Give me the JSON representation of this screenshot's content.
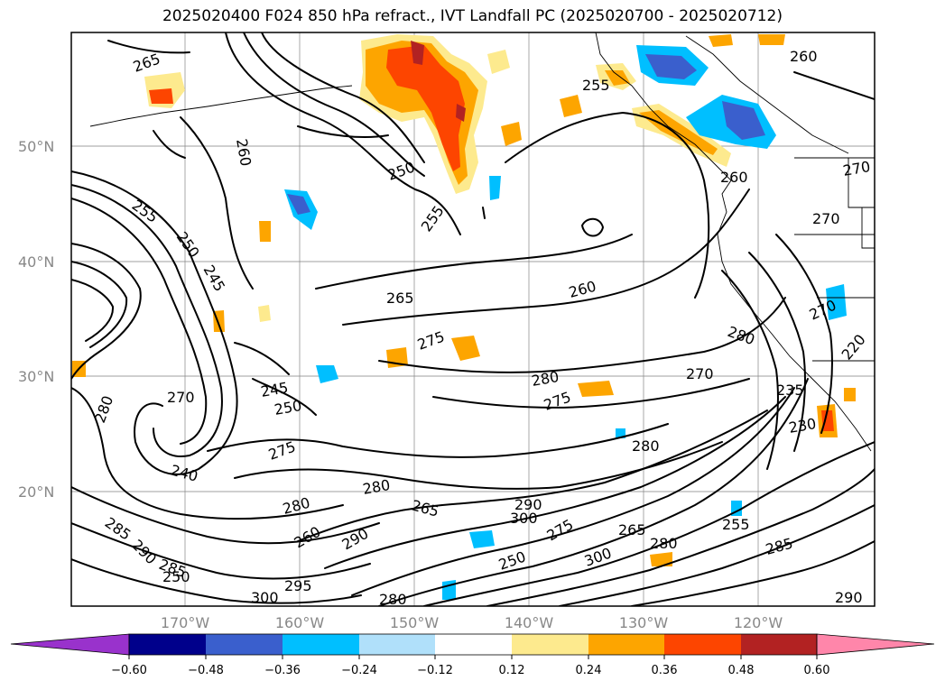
{
  "title": "2025020400 F024 850 hPa refract., IVT Landfall PC (2025020700 - 2025020712)",
  "map": {
    "lat_labels": [
      "50°N",
      "40°N",
      "30°N",
      "20°N"
    ],
    "lon_labels": [
      "170°W",
      "160°W",
      "150°W",
      "140°W",
      "130°W",
      "120°W"
    ],
    "contour_labels": [
      "265",
      "260",
      "255",
      "250",
      "255",
      "260",
      "270",
      "260",
      "255",
      "250",
      "245",
      "265",
      "260",
      "270",
      "280",
      "275",
      "280",
      "275",
      "270",
      "235",
      "230",
      "270",
      "245",
      "250",
      "240",
      "275",
      "280",
      "280",
      "265",
      "280",
      "290",
      "300",
      "285",
      "290",
      "285",
      "260",
      "290",
      "255",
      "250",
      "275",
      "265",
      "280",
      "300",
      "295",
      "290",
      "220",
      "270",
      "250",
      "285",
      "280",
      "280",
      "300"
    ],
    "colors": {
      "positive": [
        "#fdea8e",
        "#fda500",
        "#fd4500",
        "#b22222"
      ],
      "negative": [
        "#b0e0fa",
        "#00bfff",
        "#3a5fcd",
        "#00008b"
      ],
      "coast": "#000000",
      "contour": "#000000",
      "grid": "#888888"
    }
  },
  "colorbar": {
    "ticks": [
      "−0.60",
      "−0.48",
      "−0.36",
      "−0.24",
      "−0.12",
      "0.12",
      "0.24",
      "0.36",
      "0.48",
      "0.60"
    ],
    "colors": [
      "#9932cc",
      "#00008b",
      "#3a5fcd",
      "#00bfff",
      "#b0e0fa",
      "#ffffff",
      "#fdea8e",
      "#fda500",
      "#fd4500",
      "#b22222",
      "#ff86aa"
    ],
    "extend": "both"
  }
}
